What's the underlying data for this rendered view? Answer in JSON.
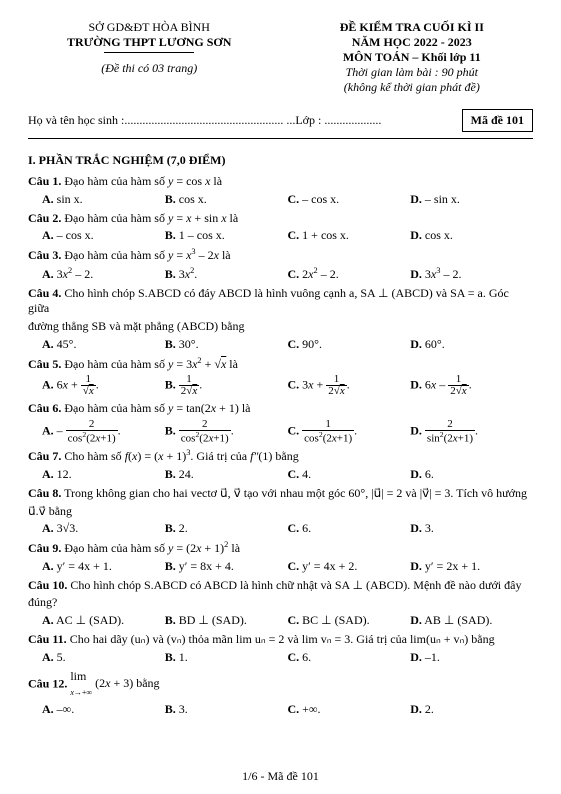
{
  "header": {
    "dept": "SỞ GD&ĐT HÒA BÌNH",
    "school": "TRƯỜNG THPT LƯƠNG SƠN",
    "pages_note": "(Đề thi có 03 trang)",
    "exam_title": "ĐỀ KIỂM TRA CUỐI KÌ II",
    "year": "NĂM HỌC 2022 - 2023",
    "subject": "MÔN TOÁN – Khối lớp 11",
    "duration": "Thời gian làm bài : 90 phút",
    "note": "(không kể thời gian phát đề)",
    "name_label": "Họ và tên học sinh :",
    "class_label": "Lớp :",
    "ma_de": "Mã đề 101"
  },
  "section1_title": "I. PHẦN TRẮC NGHIỆM (7,0 ĐIỂM)",
  "q1": {
    "num": "Câu 1.",
    "text": "Đạo hàm của hàm số  y = cos x  là",
    "A": "sin x.",
    "B": "cos x.",
    "C": "– cos x.",
    "D": "– sin x."
  },
  "q2": {
    "num": "Câu 2.",
    "text": "Đạo hàm của hàm số  y = x + sin x  là",
    "A": "– cos x.",
    "B": "1 – cos x.",
    "C": "1 + cos x.",
    "D": "cos x."
  },
  "q3": {
    "num": "Câu 3.",
    "text": "Đạo hàm của hàm số  y = x³ – 2x  là",
    "A": "3x² – 2.",
    "B": "3x².",
    "C": "2x² – 2.",
    "D": "3x³ – 2."
  },
  "q4": {
    "num": "Câu 4.",
    "text1": "Cho hình chóp  S.ABCD  có đáy  ABCD  là hình vuông cạnh  a,  SA ⊥ (ABCD)  và  SA = a.  Góc giữa",
    "text2": "đường thẳng  SB  và mặt phẳng (ABCD) bằng",
    "A": "45°.",
    "B": "30°.",
    "C": "90°.",
    "D": "60°."
  },
  "q5": {
    "num": "Câu 5.",
    "text": "Đạo hàm của hàm số  y = 3x² + √x  là"
  },
  "q6": {
    "num": "Câu 6.",
    "text": "Đạo hàm của hàm số  y = tan(2x + 1)  là"
  },
  "q7": {
    "num": "Câu 7.",
    "text": "Cho hàm số  f(x) = (x + 1)³.  Giá trị của  f″(1)  bằng",
    "A": "12.",
    "B": "24.",
    "C": "4.",
    "D": "6."
  },
  "q8": {
    "num": "Câu 8.",
    "text1": "Trong không gian cho hai vectơ  u⃗, v⃗  tạo với nhau một góc  60°,  |u⃗| = 2  và  |v⃗| = 3.  Tích vô hướng",
    "text2": "u⃗.v⃗  bằng",
    "A": "3√3.",
    "B": "2.",
    "C": "6.",
    "D": "3."
  },
  "q9": {
    "num": "Câu 9.",
    "text": "Đạo hàm của hàm số  y = (2x + 1)²  là",
    "A": "y′ = 4x + 1.",
    "B": "y′ = 8x + 4.",
    "C": "y′ = 4x + 2.",
    "D": "y′ = 2x + 1."
  },
  "q10": {
    "num": "Câu 10.",
    "text1": "Cho hình chóp  S.ABCD  có  ABCD  là hình chữ nhật và  SA ⊥ (ABCD).  Mệnh đề nào dưới đây",
    "text2": "đúng?",
    "A": "AC ⊥ (SAD).",
    "B": "BD ⊥ (SAD).",
    "C": "BC ⊥ (SAD).",
    "D": "AB ⊥ (SAD)."
  },
  "q11": {
    "num": "Câu 11.",
    "text": "Cho hai dãy (uₙ) và (vₙ) thỏa mãn lim uₙ = 2 và lim vₙ = 3. Giá trị của lim(uₙ + vₙ) bằng",
    "A": "5.",
    "B": "1.",
    "C": "6.",
    "D": "–1."
  },
  "q12": {
    "num": "Câu 12.",
    "A": "–∞.",
    "B": "3.",
    "C": "+∞.",
    "D": "2."
  },
  "footer": "1/6 - Mã đề 101"
}
